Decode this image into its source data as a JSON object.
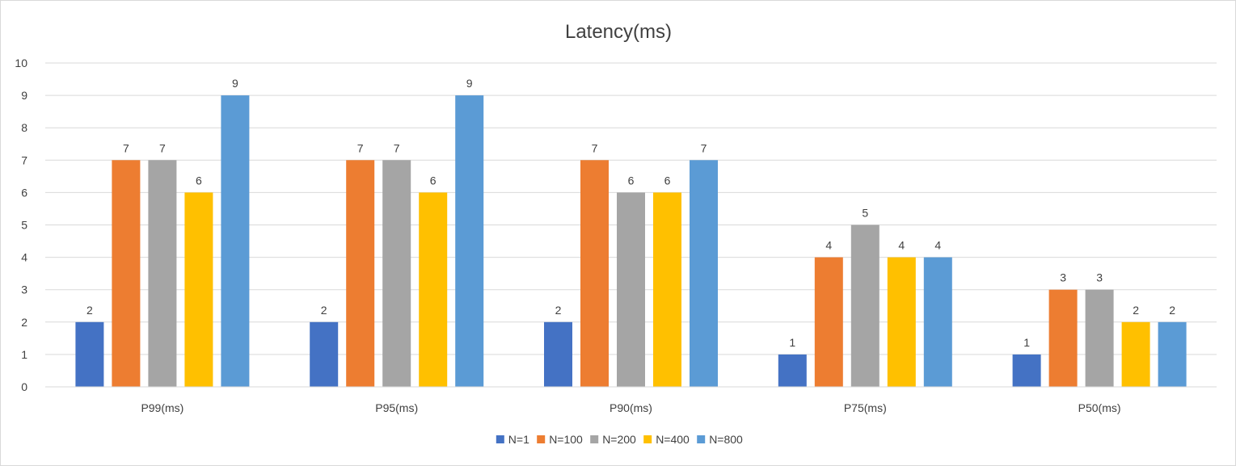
{
  "chart_data": {
    "type": "bar",
    "title": "Latency(ms)",
    "xlabel": "",
    "ylabel": "",
    "categories": [
      "P99(ms)",
      "P95(ms)",
      "P90(ms)",
      "P75(ms)",
      "P50(ms)"
    ],
    "series": [
      {
        "name": "N=1",
        "color": "#4472c4",
        "values": [
          2,
          2,
          2,
          1,
          1
        ]
      },
      {
        "name": "N=100",
        "color": "#ed7d31",
        "values": [
          7,
          7,
          7,
          4,
          3
        ]
      },
      {
        "name": "N=200",
        "color": "#a5a5a5",
        "values": [
          7,
          7,
          6,
          5,
          3
        ]
      },
      {
        "name": "N=400",
        "color": "#ffc000",
        "values": [
          6,
          6,
          6,
          4,
          2
        ]
      },
      {
        "name": "N=800",
        "color": "#5b9bd5",
        "values": [
          9,
          9,
          7,
          4,
          2
        ]
      }
    ],
    "ylim": [
      0,
      10
    ],
    "yticks": [
      0,
      1,
      2,
      3,
      4,
      5,
      6,
      7,
      8,
      9,
      10
    ],
    "grid": true,
    "data_labels": true,
    "legend_position": "bottom"
  }
}
